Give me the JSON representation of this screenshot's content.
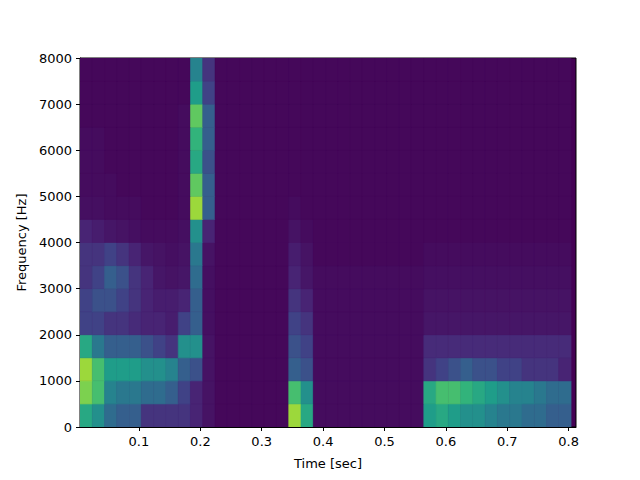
{
  "chart_data": {
    "type": "heatmap",
    "x_label": "Time [sec]",
    "y_label": "Frequency [Hz]",
    "xlim": [
      0.004,
      0.812
    ],
    "ylim": [
      0,
      8000
    ],
    "xticks": [
      0.1,
      0.2,
      0.3,
      0.4,
      0.5,
      0.6,
      0.7,
      0.8
    ],
    "yticks": [
      0,
      1000,
      2000,
      3000,
      4000,
      5000,
      6000,
      7000,
      8000
    ],
    "grid": false,
    "zlim": [
      0,
      1
    ],
    "time_edges": [
      0.004,
      0.024,
      0.044,
      0.064,
      0.084,
      0.104,
      0.124,
      0.144,
      0.164,
      0.184,
      0.204,
      0.224,
      0.244,
      0.264,
      0.284,
      0.304,
      0.324,
      0.344,
      0.364,
      0.384,
      0.404,
      0.424,
      0.444,
      0.464,
      0.484,
      0.504,
      0.524,
      0.544,
      0.564,
      0.584,
      0.604,
      0.624,
      0.644,
      0.664,
      0.684,
      0.704,
      0.724,
      0.744,
      0.764,
      0.784,
      0.804
    ],
    "frequency_edges": [
      0,
      500,
      1000,
      1500,
      2000,
      2500,
      3000,
      3500,
      4000,
      4500,
      5000,
      5500,
      6000,
      6500,
      7000,
      7500,
      8000
    ],
    "cells": [
      [
        0.6,
        0.5,
        0.35,
        0.3,
        0.3,
        0.15,
        0.15,
        0.15,
        0.15,
        0.1,
        0.05,
        0.02,
        0.02,
        0.02,
        0.02,
        0.02,
        0.02,
        0.85,
        0.6,
        0.03,
        0.03,
        0.03,
        0.03,
        0.03,
        0.03,
        0.03,
        0.03,
        0.03,
        0.55,
        0.6,
        0.55,
        0.5,
        0.5,
        0.45,
        0.4,
        0.4,
        0.35,
        0.35,
        0.3,
        0.3
      ],
      [
        0.8,
        0.7,
        0.45,
        0.4,
        0.4,
        0.35,
        0.35,
        0.3,
        0.2,
        0.1,
        0.05,
        0.02,
        0.02,
        0.02,
        0.02,
        0.02,
        0.02,
        0.7,
        0.5,
        0.03,
        0.03,
        0.03,
        0.03,
        0.03,
        0.03,
        0.03,
        0.03,
        0.03,
        0.6,
        0.7,
        0.7,
        0.65,
        0.6,
        0.55,
        0.5,
        0.45,
        0.45,
        0.4,
        0.35,
        0.35
      ],
      [
        0.85,
        0.7,
        0.55,
        0.55,
        0.55,
        0.5,
        0.5,
        0.45,
        0.3,
        0.25,
        0.05,
        0.02,
        0.02,
        0.02,
        0.02,
        0.02,
        0.02,
        0.3,
        0.25,
        0.03,
        0.03,
        0.03,
        0.03,
        0.03,
        0.03,
        0.03,
        0.03,
        0.03,
        0.15,
        0.2,
        0.25,
        0.3,
        0.25,
        0.25,
        0.2,
        0.2,
        0.15,
        0.15,
        0.15,
        0.1
      ],
      [
        0.6,
        0.4,
        0.3,
        0.3,
        0.3,
        0.25,
        0.2,
        0.15,
        0.5,
        0.5,
        0.05,
        0.02,
        0.02,
        0.02,
        0.02,
        0.02,
        0.02,
        0.25,
        0.2,
        0.03,
        0.03,
        0.03,
        0.03,
        0.03,
        0.03,
        0.03,
        0.03,
        0.03,
        0.12,
        0.12,
        0.12,
        0.12,
        0.12,
        0.12,
        0.12,
        0.12,
        0.12,
        0.12,
        0.12,
        0.12
      ],
      [
        0.2,
        0.2,
        0.15,
        0.15,
        0.12,
        0.1,
        0.1,
        0.08,
        0.2,
        0.3,
        0.04,
        0.02,
        0.02,
        0.02,
        0.02,
        0.02,
        0.02,
        0.2,
        0.15,
        0.03,
        0.03,
        0.03,
        0.03,
        0.03,
        0.03,
        0.03,
        0.03,
        0.03,
        0.06,
        0.06,
        0.06,
        0.06,
        0.06,
        0.06,
        0.06,
        0.06,
        0.06,
        0.06,
        0.06,
        0.06
      ],
      [
        0.2,
        0.25,
        0.25,
        0.2,
        0.15,
        0.1,
        0.08,
        0.08,
        0.1,
        0.3,
        0.04,
        0.02,
        0.02,
        0.02,
        0.02,
        0.02,
        0.02,
        0.15,
        0.1,
        0.03,
        0.03,
        0.03,
        0.03,
        0.03,
        0.03,
        0.03,
        0.03,
        0.03,
        0.05,
        0.05,
        0.05,
        0.05,
        0.05,
        0.05,
        0.05,
        0.05,
        0.05,
        0.05,
        0.05,
        0.05
      ],
      [
        0.15,
        0.2,
        0.3,
        0.25,
        0.15,
        0.1,
        0.06,
        0.05,
        0.06,
        0.35,
        0.04,
        0.02,
        0.02,
        0.02,
        0.02,
        0.02,
        0.02,
        0.1,
        0.06,
        0.03,
        0.03,
        0.03,
        0.03,
        0.03,
        0.03,
        0.03,
        0.03,
        0.03,
        0.04,
        0.04,
        0.04,
        0.04,
        0.04,
        0.04,
        0.04,
        0.04,
        0.04,
        0.04,
        0.04,
        0.04
      ],
      [
        0.15,
        0.15,
        0.2,
        0.15,
        0.1,
        0.06,
        0.05,
        0.04,
        0.05,
        0.4,
        0.05,
        0.02,
        0.02,
        0.02,
        0.02,
        0.02,
        0.02,
        0.08,
        0.05,
        0.02,
        0.02,
        0.02,
        0.02,
        0.02,
        0.02,
        0.02,
        0.02,
        0.02,
        0.03,
        0.03,
        0.03,
        0.03,
        0.03,
        0.03,
        0.03,
        0.03,
        0.03,
        0.03,
        0.03,
        0.03
      ],
      [
        0.1,
        0.08,
        0.06,
        0.05,
        0.04,
        0.03,
        0.03,
        0.03,
        0.04,
        0.5,
        0.1,
        0.02,
        0.02,
        0.02,
        0.02,
        0.02,
        0.02,
        0.05,
        0.03,
        0.02,
        0.02,
        0.02,
        0.02,
        0.02,
        0.02,
        0.02,
        0.02,
        0.02,
        0.02,
        0.02,
        0.02,
        0.02,
        0.02,
        0.02,
        0.02,
        0.02,
        0.02,
        0.02,
        0.02,
        0.02
      ],
      [
        0.04,
        0.04,
        0.03,
        0.03,
        0.03,
        0.02,
        0.02,
        0.02,
        0.03,
        0.85,
        0.3,
        0.02,
        0.02,
        0.02,
        0.02,
        0.02,
        0.02,
        0.03,
        0.02,
        0.02,
        0.02,
        0.02,
        0.02,
        0.02,
        0.02,
        0.02,
        0.02,
        0.02,
        0.02,
        0.02,
        0.02,
        0.02,
        0.02,
        0.02,
        0.02,
        0.02,
        0.02,
        0.02,
        0.02,
        0.02
      ],
      [
        0.03,
        0.03,
        0.03,
        0.02,
        0.02,
        0.02,
        0.02,
        0.02,
        0.03,
        0.75,
        0.3,
        0.02,
        0.02,
        0.02,
        0.02,
        0.02,
        0.02,
        0.02,
        0.02,
        0.02,
        0.02,
        0.02,
        0.02,
        0.02,
        0.02,
        0.02,
        0.02,
        0.02,
        0.02,
        0.02,
        0.02,
        0.02,
        0.02,
        0.02,
        0.02,
        0.02,
        0.02,
        0.02,
        0.02,
        0.02
      ],
      [
        0.03,
        0.03,
        0.02,
        0.02,
        0.02,
        0.02,
        0.02,
        0.02,
        0.03,
        0.6,
        0.25,
        0.02,
        0.02,
        0.02,
        0.02,
        0.02,
        0.02,
        0.02,
        0.02,
        0.02,
        0.02,
        0.02,
        0.02,
        0.02,
        0.02,
        0.02,
        0.02,
        0.02,
        0.02,
        0.02,
        0.02,
        0.02,
        0.02,
        0.02,
        0.02,
        0.02,
        0.02,
        0.02,
        0.02,
        0.02
      ],
      [
        0.03,
        0.03,
        0.02,
        0.02,
        0.02,
        0.02,
        0.02,
        0.02,
        0.03,
        0.65,
        0.3,
        0.02,
        0.02,
        0.02,
        0.02,
        0.02,
        0.02,
        0.02,
        0.02,
        0.02,
        0.02,
        0.02,
        0.02,
        0.02,
        0.02,
        0.02,
        0.02,
        0.02,
        0.02,
        0.02,
        0.02,
        0.02,
        0.02,
        0.02,
        0.02,
        0.02,
        0.02,
        0.02,
        0.02,
        0.02
      ],
      [
        0.02,
        0.02,
        0.02,
        0.02,
        0.02,
        0.02,
        0.02,
        0.02,
        0.03,
        0.75,
        0.3,
        0.02,
        0.02,
        0.02,
        0.02,
        0.02,
        0.02,
        0.02,
        0.02,
        0.02,
        0.02,
        0.02,
        0.02,
        0.02,
        0.02,
        0.02,
        0.02,
        0.02,
        0.02,
        0.02,
        0.02,
        0.02,
        0.02,
        0.02,
        0.02,
        0.02,
        0.02,
        0.02,
        0.02,
        0.02
      ],
      [
        0.02,
        0.02,
        0.02,
        0.02,
        0.02,
        0.02,
        0.02,
        0.02,
        0.02,
        0.55,
        0.2,
        0.02,
        0.02,
        0.02,
        0.02,
        0.02,
        0.02,
        0.02,
        0.02,
        0.02,
        0.02,
        0.02,
        0.02,
        0.02,
        0.02,
        0.02,
        0.02,
        0.02,
        0.02,
        0.02,
        0.02,
        0.02,
        0.02,
        0.02,
        0.02,
        0.02,
        0.02,
        0.02,
        0.02,
        0.02
      ],
      [
        0.02,
        0.02,
        0.02,
        0.02,
        0.02,
        0.02,
        0.02,
        0.02,
        0.02,
        0.45,
        0.15,
        0.02,
        0.02,
        0.02,
        0.02,
        0.02,
        0.02,
        0.02,
        0.02,
        0.02,
        0.02,
        0.02,
        0.02,
        0.02,
        0.02,
        0.02,
        0.02,
        0.02,
        0.02,
        0.02,
        0.02,
        0.02,
        0.02,
        0.02,
        0.02,
        0.02,
        0.02,
        0.02,
        0.02,
        0.02
      ]
    ]
  }
}
